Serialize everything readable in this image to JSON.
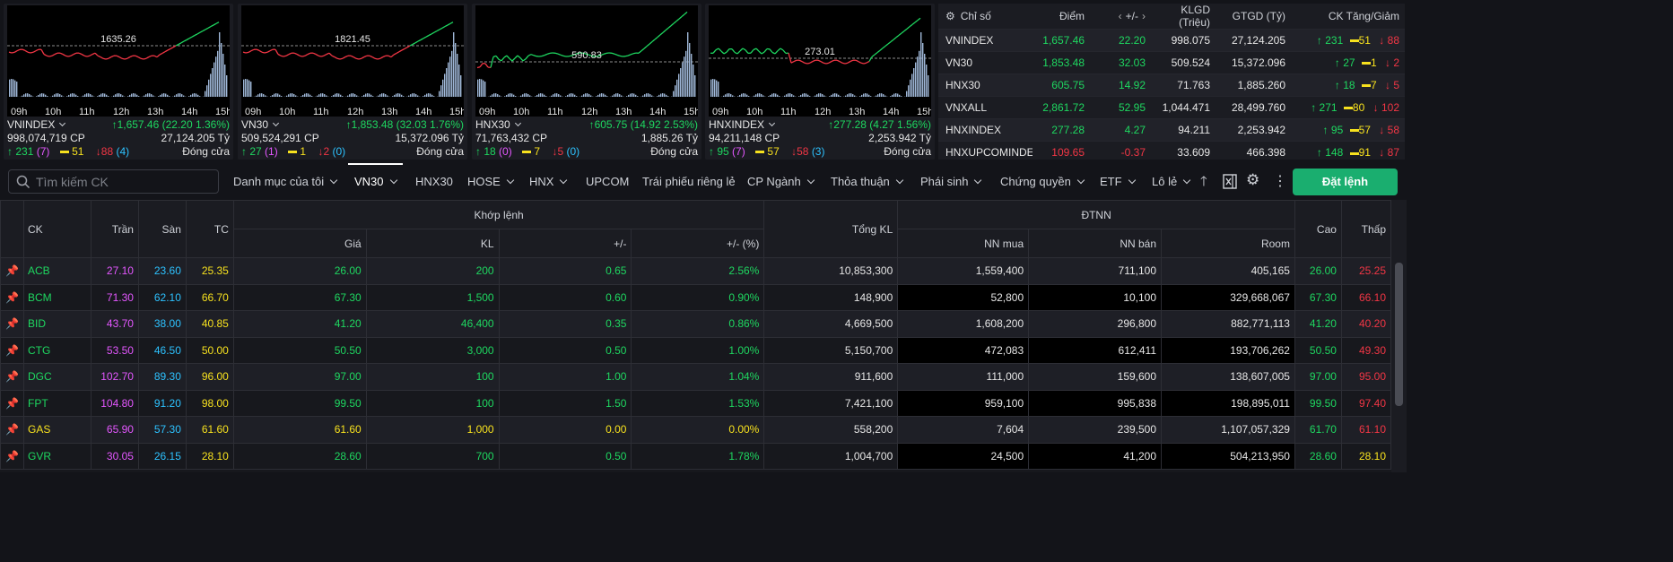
{
  "cards": [
    {
      "name": "VNINDEX",
      "ref_label": "1635.26",
      "change": "1,657.46 (22.20 1.36%)",
      "volume": "998,074,719 CP",
      "value": "27,124.205 Tỷ",
      "up": "231",
      "ceil": "(7)",
      "ref": "51",
      "down": "88",
      "floor": "(4)",
      "status": "Đóng cửa",
      "ref_y": 0.44,
      "mode": "red"
    },
    {
      "name": "VN30",
      "ref_label": "1821.45",
      "change": "1,853.48 (32.03 1.76%)",
      "volume": "509,524,291 CP",
      "value": "15,372.096 Tỷ",
      "up": "27",
      "ceil": "(1)",
      "ref": "1",
      "down": "2",
      "floor": "(0)",
      "status": "Đóng cửa",
      "ref_y": 0.44,
      "mode": "red"
    },
    {
      "name": "HNX30",
      "ref_label": "590.83",
      "change": "605.75 (14.92 2.53%)",
      "volume": "71,763,432 CP",
      "value": "1,885.26 Tỷ",
      "up": "18",
      "ceil": "(0)",
      "ref": "7",
      "down": "5",
      "floor": "(0)",
      "status": "Đóng cửa",
      "ref_y": 0.62,
      "mode": "green"
    },
    {
      "name": "HNXINDEX",
      "ref_label": "273.01",
      "change": "277.28 (4.27 1.56%)",
      "volume": "94,211,148 CP",
      "value": "2,253.942 Tỷ",
      "up": "95",
      "ceil": "(7)",
      "ref": "57",
      "down": "58",
      "floor": "(3)",
      "status": "Đóng cửa",
      "ref_y": 0.58,
      "mode": "mixed"
    }
  ],
  "hours": [
    "09h",
    "10h",
    "11h",
    "12h",
    "13h",
    "14h",
    "15h"
  ],
  "index_table": {
    "headers": [
      "Chỉ số",
      "Điểm",
      "+/-",
      "KLGD (Triệu)",
      "GTGD (Tỷ)",
      "CK Tăng/Giảm"
    ],
    "rows": [
      {
        "name": "VNINDEX",
        "point": "1,657.46",
        "chg": "22.20",
        "vol": "998.075",
        "val": "27,124.205",
        "up": "231",
        "ref": "51",
        "down": "88",
        "color": "up"
      },
      {
        "name": "VN30",
        "point": "1,853.48",
        "chg": "32.03",
        "vol": "509.524",
        "val": "15,372.096",
        "up": "27",
        "ref": "1",
        "down": "2",
        "color": "up"
      },
      {
        "name": "HNX30",
        "point": "605.75",
        "chg": "14.92",
        "vol": "71.763",
        "val": "1,885.260",
        "up": "18",
        "ref": "7",
        "down": "5",
        "color": "up"
      },
      {
        "name": "VNXALL",
        "point": "2,861.72",
        "chg": "52.95",
        "vol": "1,044.471",
        "val": "28,499.760",
        "up": "271",
        "ref": "80",
        "down": "102",
        "color": "up"
      },
      {
        "name": "HNXINDEX",
        "point": "277.28",
        "chg": "4.27",
        "vol": "94.211",
        "val": "2,253.942",
        "up": "95",
        "ref": "57",
        "down": "58",
        "color": "up"
      },
      {
        "name": "HNXUPCOMINDEX",
        "point": "109.65",
        "chg": "-0.37",
        "vol": "33.609",
        "val": "466.398",
        "up": "148",
        "ref": "91",
        "down": "87",
        "color": "dn"
      }
    ]
  },
  "toolbar": {
    "search_placeholder": "Tìm kiếm CK",
    "tabs": [
      "Danh mục của tôi",
      "VN30",
      "HNX30",
      "HOSE",
      "HNX",
      "UPCOM",
      "Trái phiếu riêng lẻ",
      "CP Ngành",
      "Thỏa thuận",
      "Phái sinh",
      "Chứng quyền",
      "ETF",
      "Lô lẻ"
    ],
    "order_button": "Đặt lệnh"
  },
  "grid": {
    "headers": {
      "ck": "CK",
      "tran": "Trần",
      "san": "Sàn",
      "tc": "TC",
      "match": "Khớp lệnh",
      "gia": "Giá",
      "kl": "KL",
      "chg": "+/-",
      "pct": "+/- (%)",
      "tongkl": "Tổng KL",
      "dtnn": "ĐTNN",
      "nnmua": "NN mua",
      "nnban": "NN bán",
      "room": "Room",
      "cao": "Cao",
      "thap": "Thấp"
    },
    "rows": [
      {
        "ck": "ACB",
        "tran": "27.10",
        "san": "23.60",
        "tc": "25.35",
        "gia": "26.00",
        "kl": "200",
        "chg": "0.65",
        "pct": "2.56%",
        "tongkl": "10,853,300",
        "nnmua": "1,559,400",
        "nnban": "711,100",
        "room": "405,165",
        "cao": "26.00",
        "thap": "25.25",
        "c": "up",
        "cc": "up",
        "tc2": "dn"
      },
      {
        "ck": "BCM",
        "tran": "71.30",
        "san": "62.10",
        "tc": "66.70",
        "gia": "67.30",
        "kl": "1,500",
        "chg": "0.60",
        "pct": "0.90%",
        "tongkl": "148,900",
        "nnmua": "52,800",
        "nnban": "10,100",
        "room": "329,668,067",
        "cao": "67.30",
        "thap": "66.10",
        "c": "up",
        "cc": "up",
        "tc2": "dn"
      },
      {
        "ck": "BID",
        "tran": "43.70",
        "san": "38.00",
        "tc": "40.85",
        "gia": "41.20",
        "kl": "46,400",
        "chg": "0.35",
        "pct": "0.86%",
        "tongkl": "4,669,500",
        "nnmua": "1,608,200",
        "nnban": "296,800",
        "room": "882,771,113",
        "cao": "41.20",
        "thap": "40.20",
        "c": "up",
        "cc": "up",
        "tc2": "dn"
      },
      {
        "ck": "CTG",
        "tran": "53.50",
        "san": "46.50",
        "tc": "50.00",
        "gia": "50.50",
        "kl": "3,000",
        "chg": "0.50",
        "pct": "1.00%",
        "tongkl": "5,150,700",
        "nnmua": "472,083",
        "nnban": "612,411",
        "room": "193,706,262",
        "cao": "50.50",
        "thap": "49.30",
        "c": "up",
        "cc": "up",
        "tc2": "dn"
      },
      {
        "ck": "DGC",
        "tran": "102.70",
        "san": "89.30",
        "tc": "96.00",
        "gia": "97.00",
        "kl": "100",
        "chg": "1.00",
        "pct": "1.04%",
        "tongkl": "911,600",
        "nnmua": "111,000",
        "nnban": "159,600",
        "room": "138,607,005",
        "cao": "97.00",
        "thap": "95.00",
        "c": "up",
        "cc": "up",
        "tc2": "dn"
      },
      {
        "ck": "FPT",
        "tran": "104.80",
        "san": "91.20",
        "tc": "98.00",
        "gia": "99.50",
        "kl": "100",
        "chg": "1.50",
        "pct": "1.53%",
        "tongkl": "7,421,100",
        "nnmua": "959,100",
        "nnban": "995,838",
        "room": "198,895,011",
        "cao": "99.50",
        "thap": "97.40",
        "c": "up",
        "cc": "up",
        "tc2": "dn"
      },
      {
        "ck": "GAS",
        "tran": "65.90",
        "san": "57.30",
        "tc": "61.60",
        "gia": "61.60",
        "kl": "1,000",
        "chg": "0.00",
        "pct": "0.00%",
        "tongkl": "558,200",
        "nnmua": "7,604",
        "nnban": "239,500",
        "room": "1,107,057,329",
        "cao": "61.70",
        "thap": "61.10",
        "c": "ref",
        "cc": "up",
        "tc2": "dn"
      },
      {
        "ck": "GVR",
        "tran": "30.05",
        "san": "26.15",
        "tc": "28.10",
        "gia": "28.60",
        "kl": "700",
        "chg": "0.50",
        "pct": "1.78%",
        "tongkl": "1,004,700",
        "nnmua": "24,500",
        "nnban": "41,200",
        "room": "504,213,950",
        "cao": "28.60",
        "thap": "28.10",
        "c": "up",
        "cc": "up",
        "tc2": "ref"
      }
    ]
  }
}
